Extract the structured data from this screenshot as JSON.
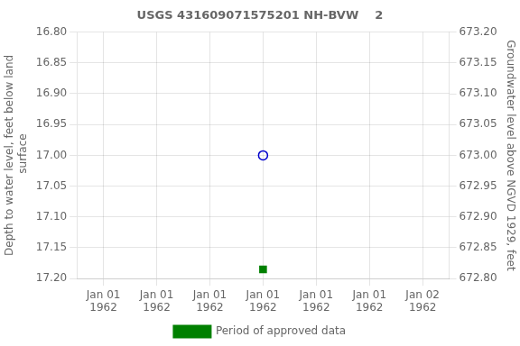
{
  "chart_data": {
    "type": "scatter",
    "title": "USGS 431609071575201 NH-BVW    2",
    "categories": [
      "Jan 01\n1962",
      "Jan 01\n1962",
      "Jan 01\n1962",
      "Jan 01\n1962",
      "Jan 01\n1962",
      "Jan 01\n1962",
      "Jan 02\n1962"
    ],
    "ylabel": "Depth to water level, feet below land\n surface",
    "y2label": "Groundwater level above NGVD 1929, feet",
    "ylim": [
      17.2,
      16.8
    ],
    "yticks": [
      {
        "value": 16.8,
        "label": "16.80"
      },
      {
        "value": 16.85,
        "label": "16.85"
      },
      {
        "value": 16.9,
        "label": "16.90"
      },
      {
        "value": 16.95,
        "label": "16.95"
      },
      {
        "value": 17.0,
        "label": "17.00"
      },
      {
        "value": 17.05,
        "label": "17.05"
      },
      {
        "value": 17.1,
        "label": "17.10"
      },
      {
        "value": 17.15,
        "label": "17.15"
      },
      {
        "value": 17.2,
        "label": "17.20"
      }
    ],
    "y2lim": [
      672.8,
      673.2
    ],
    "y2ticks": [
      {
        "value": 672.8,
        "label": "672.80"
      },
      {
        "value": 672.85,
        "label": "672.85"
      },
      {
        "value": 672.9,
        "label": "672.90"
      },
      {
        "value": 672.95,
        "label": "672.95"
      },
      {
        "value": 673.0,
        "label": "673.00"
      },
      {
        "value": 673.05,
        "label": "673.05"
      },
      {
        "value": 673.1,
        "label": "673.10"
      },
      {
        "value": 673.15,
        "label": "673.15"
      },
      {
        "value": 673.2,
        "label": "673.20"
      }
    ],
    "series": [
      {
        "color": "#0000cc",
        "marker": "open_circle",
        "values": [
          null,
          null,
          null,
          17.0,
          null,
          null,
          null
        ]
      },
      {
        "name": "Period of approved data",
        "color": "#008000",
        "marker": "square",
        "values": [
          null,
          null,
          null,
          17.185,
          null,
          null,
          null
        ]
      }
    ],
    "grid": true,
    "legend": "bottom"
  }
}
